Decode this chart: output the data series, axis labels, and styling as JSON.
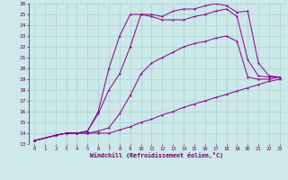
{
  "xlabel": "Windchill (Refroidissement éolien,°C)",
  "xlim": [
    -0.5,
    23.5
  ],
  "ylim": [
    13,
    26
  ],
  "background_color": "#cce8e8",
  "grid_color": "#aad0d0",
  "line_color": "#880088",
  "series": [
    {
      "x": [
        0,
        2,
        3,
        4,
        5,
        6,
        7,
        8,
        9,
        10,
        11,
        12,
        13,
        14,
        15,
        16,
        17,
        18,
        19,
        20,
        21,
        22,
        23
      ],
      "y": [
        13.3,
        13.8,
        14.0,
        14.0,
        14.0,
        14.0,
        14.0,
        14.3,
        14.6,
        15.0,
        15.3,
        15.7,
        16.0,
        16.4,
        16.7,
        17.0,
        17.3,
        17.6,
        17.9,
        18.2,
        18.5,
        18.8,
        19.0
      ]
    },
    {
      "x": [
        0,
        2,
        3,
        4,
        5,
        6,
        7,
        8,
        9,
        10,
        11,
        12,
        13,
        14,
        15,
        16,
        17,
        18,
        19,
        20,
        21,
        22,
        23
      ],
      "y": [
        13.3,
        13.8,
        14.0,
        14.0,
        14.0,
        14.2,
        14.5,
        15.8,
        17.5,
        19.5,
        20.5,
        21.0,
        21.5,
        22.0,
        22.3,
        22.5,
        22.8,
        23.0,
        22.5,
        19.2,
        19.0,
        19.0,
        19.2
      ]
    },
    {
      "x": [
        0,
        2,
        3,
        4,
        5,
        6,
        7,
        8,
        9,
        10,
        11,
        12,
        13,
        14,
        15,
        16,
        17,
        18,
        19,
        20,
        21,
        22,
        23
      ],
      "y": [
        13.3,
        13.8,
        14.0,
        14.0,
        14.2,
        15.8,
        18.0,
        19.5,
        22.0,
        25.0,
        24.8,
        24.5,
        24.5,
        24.5,
        24.8,
        25.0,
        25.3,
        25.5,
        24.8,
        20.8,
        19.3,
        19.2,
        19.2
      ]
    },
    {
      "x": [
        0,
        2,
        3,
        4,
        5,
        6,
        7,
        8,
        9,
        10,
        11,
        12,
        13,
        14,
        15,
        16,
        17,
        18,
        19,
        20,
        21,
        22,
        23
      ],
      "y": [
        13.3,
        13.8,
        14.0,
        14.0,
        14.2,
        16.0,
        20.0,
        23.0,
        25.0,
        25.0,
        25.0,
        24.8,
        25.3,
        25.5,
        25.5,
        25.8,
        26.0,
        25.8,
        25.2,
        25.3,
        20.5,
        19.3,
        19.2
      ]
    }
  ]
}
